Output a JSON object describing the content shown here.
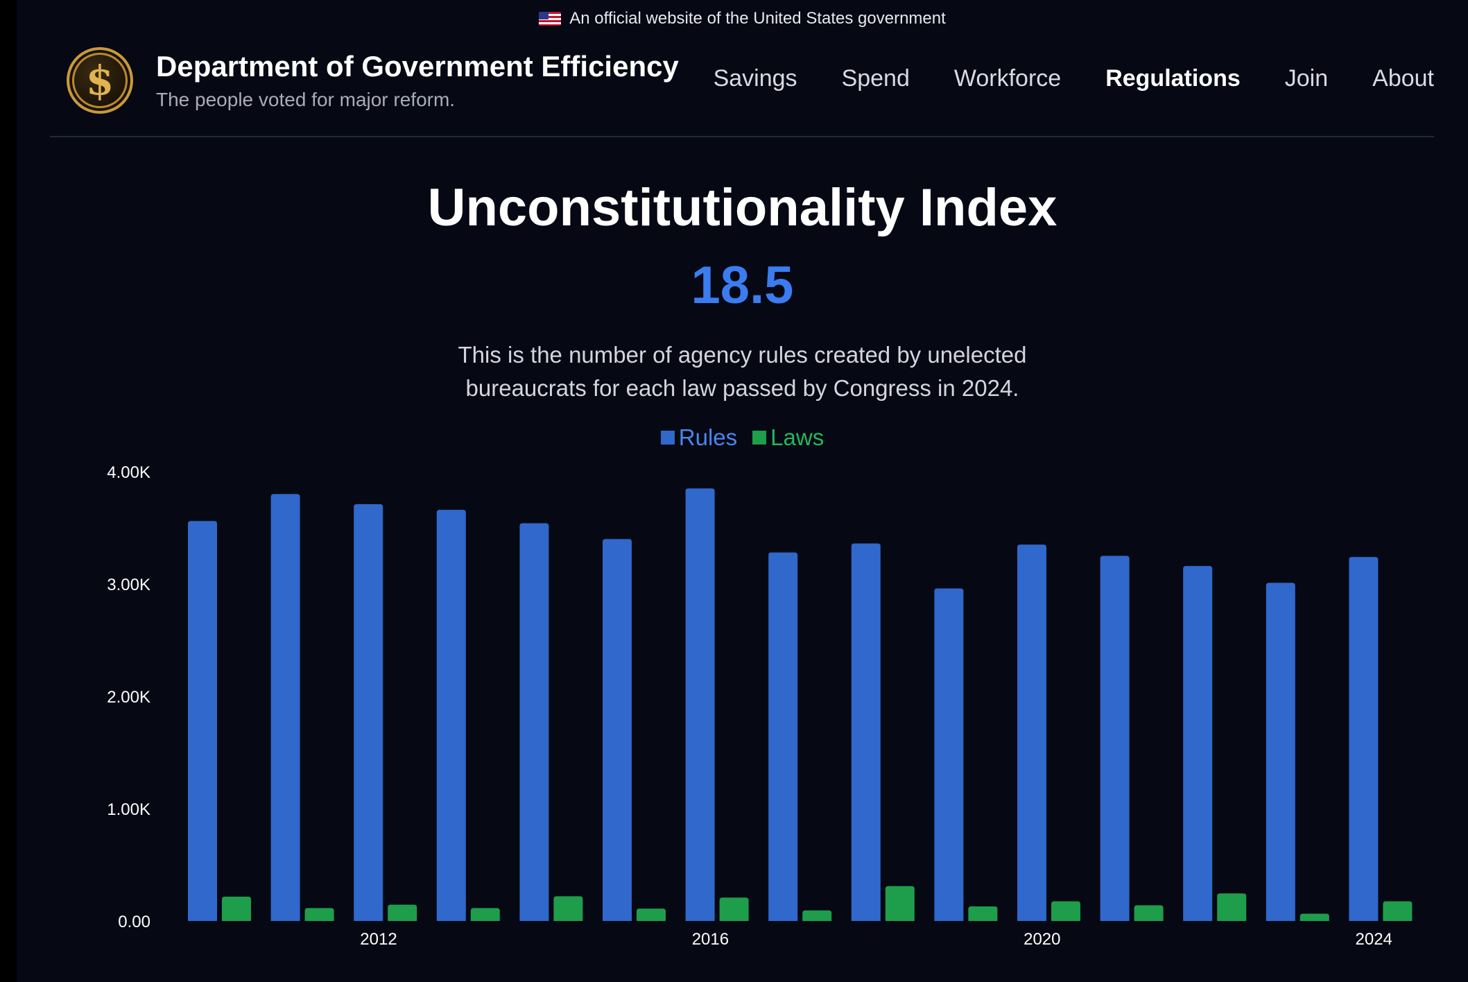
{
  "banner": {
    "flag_icon": "us-flag-icon",
    "text": "An official website of the United States government"
  },
  "header": {
    "logo_icon": "dollar-seal-icon",
    "title": "Department of Government Efficiency",
    "subtitle": "The people voted for major reform.",
    "nav": [
      {
        "label": "Savings",
        "active": false
      },
      {
        "label": "Spend",
        "active": false
      },
      {
        "label": "Workforce",
        "active": false
      },
      {
        "label": "Regulations",
        "active": true
      },
      {
        "label": "Join",
        "active": false
      },
      {
        "label": "About",
        "active": false
      }
    ]
  },
  "hero": {
    "title": "Unconstitutionality Index",
    "value": "18.5",
    "description_line1": "This is the number of agency rules created by unelected",
    "description_line2": "bureaucrats for each law passed by Congress in 2024."
  },
  "colors": {
    "background": "#060814",
    "rules": "#3068cc",
    "laws": "#1e9d4b",
    "accent_value": "#3b7cf0",
    "legend_rules_text": "#4a86ee",
    "legend_laws_text": "#22b85a"
  },
  "chart_data": {
    "type": "bar",
    "categories": [
      "2010",
      "2011",
      "2012",
      "2013",
      "2014",
      "2015",
      "2016",
      "2017",
      "2018",
      "2019",
      "2020",
      "2021",
      "2022",
      "2023",
      "2024"
    ],
    "x_tick_labels": [
      "2012",
      "2016",
      "2020",
      "2024"
    ],
    "series": [
      {
        "name": "Rules",
        "values": [
          3560,
          3800,
          3710,
          3660,
          3540,
          3400,
          3850,
          3280,
          3360,
          2960,
          3350,
          3250,
          3160,
          3010,
          3240
        ]
      },
      {
        "name": "Laws",
        "values": [
          217,
          115,
          145,
          115,
          220,
          110,
          208,
          94,
          310,
          130,
          175,
          140,
          245,
          65,
          175
        ]
      }
    ],
    "y_ticks": [
      "0.00",
      "1.00K",
      "2.00K",
      "3.00K",
      "4.00K"
    ],
    "ylim": [
      0,
      4000
    ],
    "legend": "top-center",
    "grid": false
  }
}
